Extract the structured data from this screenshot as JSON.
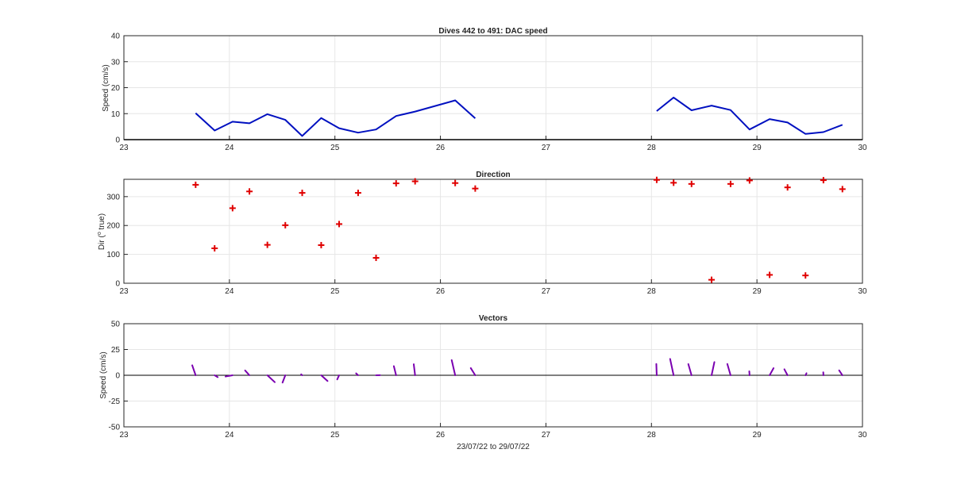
{
  "chart_data": [
    {
      "type": "line",
      "title": "Dives 442 to 491: DAC speed",
      "xlabel": "",
      "ylabel": "Speed (cm/s)",
      "xlim": [
        23,
        30
      ],
      "ylim": [
        0,
        40
      ],
      "xticks": [
        23,
        24,
        25,
        26,
        27,
        28,
        29,
        30
      ],
      "yticks": [
        0,
        10,
        20,
        30,
        40
      ],
      "grid": true,
      "color": "#0010c0",
      "segments": [
        {
          "x": [
            23.68,
            23.86,
            24.03,
            24.19,
            24.36,
            24.53,
            24.69,
            24.87,
            25.04,
            25.22,
            25.39,
            25.58,
            25.76,
            26.14,
            26.33
          ],
          "y": [
            10.2,
            3.5,
            6.9,
            6.3,
            9.8,
            7.6,
            1.4,
            8.3,
            4.4,
            2.7,
            3.9,
            9.1,
            10.8,
            15.1,
            8.2
          ]
        },
        {
          "x": [
            28.05,
            28.21,
            28.38,
            28.57,
            28.75,
            28.93,
            29.12,
            29.29,
            29.46,
            29.63,
            29.81
          ],
          "y": [
            11.0,
            16.2,
            11.3,
            13.1,
            11.4,
            3.9,
            7.9,
            6.6,
            2.2,
            2.9,
            5.7
          ]
        }
      ]
    },
    {
      "type": "scatter",
      "title": "Direction",
      "xlabel": "",
      "ylabel": "Dir (° true)",
      "ylabel_main": "Dir (",
      "ylabel_sup": "o",
      "ylabel_rest": " true)",
      "xlim": [
        23,
        30
      ],
      "ylim": [
        0,
        360
      ],
      "xticks": [
        23,
        24,
        25,
        26,
        27,
        28,
        29,
        30
      ],
      "yticks": [
        0,
        100,
        200,
        300
      ],
      "grid": true,
      "marker": "+",
      "color": "#e00000",
      "x": [
        23.68,
        23.86,
        24.03,
        24.19,
        24.36,
        24.53,
        24.69,
        24.87,
        25.04,
        25.22,
        25.39,
        25.58,
        25.76,
        26.14,
        26.33,
        28.05,
        28.21,
        28.38,
        28.57,
        28.75,
        28.93,
        29.12,
        29.29,
        29.46,
        29.63,
        29.81
      ],
      "y": [
        341,
        121,
        260,
        318,
        133,
        201,
        313,
        132,
        205,
        313,
        88,
        346,
        353,
        347,
        328,
        358,
        348,
        344,
        12,
        344,
        356,
        29,
        332,
        27,
        357,
        326
      ]
    },
    {
      "type": "vector",
      "title": "Vectors",
      "xlabel": "23/07/22 to 29/07/22",
      "ylabel": "Speed (cm/s)",
      "xlim": [
        23,
        30
      ],
      "ylim": [
        -50,
        50
      ],
      "xticks": [
        23,
        24,
        25,
        26,
        27,
        28,
        29,
        30
      ],
      "yticks": [
        -50,
        -25,
        0,
        25,
        50
      ],
      "grid": true,
      "color": "#7a00b0",
      "x": [
        23.68,
        23.86,
        24.03,
        24.19,
        24.36,
        24.53,
        24.69,
        24.87,
        25.04,
        25.22,
        25.39,
        25.58,
        25.76,
        26.14,
        26.33,
        28.05,
        28.21,
        28.38,
        28.57,
        28.75,
        28.93,
        29.12,
        29.29,
        29.46,
        29.63,
        29.81
      ],
      "speed": [
        10.2,
        3.5,
        6.9,
        6.3,
        9.8,
        7.6,
        1.4,
        8.3,
        4.4,
        2.7,
        3.9,
        9.1,
        10.8,
        15.1,
        8.2,
        11.0,
        16.2,
        11.3,
        13.1,
        11.4,
        3.9,
        7.9,
        6.6,
        2.2,
        2.9,
        5.7
      ],
      "direction": [
        341,
        121,
        260,
        318,
        133,
        201,
        313,
        132,
        205,
        313,
        88,
        346,
        353,
        347,
        328,
        358,
        348,
        344,
        12,
        344,
        356,
        29,
        332,
        27,
        357,
        326
      ]
    }
  ]
}
